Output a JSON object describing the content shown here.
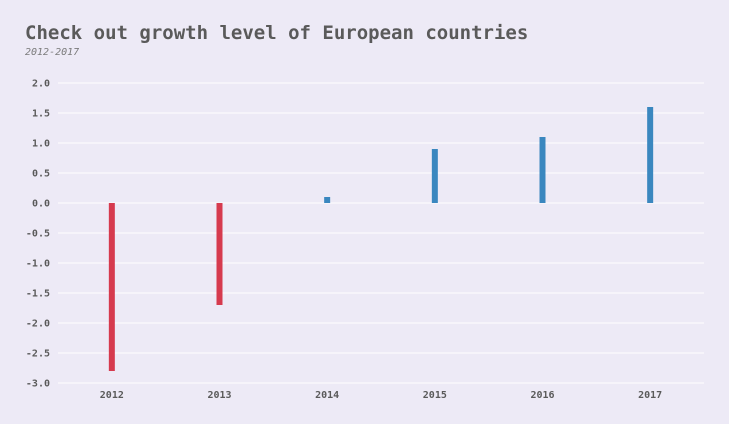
{
  "chart_data": {
    "type": "bar",
    "title": "Check out growth level of European countries",
    "subtitle": "2012-2017",
    "xlabel": "",
    "ylabel": "",
    "categories": [
      "2012",
      "2013",
      "2014",
      "2015",
      "2016",
      "2017"
    ],
    "values": [
      -2.8,
      -1.7,
      0.1,
      0.9,
      1.1,
      1.6
    ],
    "ylim": [
      -3.0,
      2.0
    ],
    "yticks": [
      2.0,
      1.5,
      1.0,
      0.5,
      0.0,
      -0.5,
      -1.0,
      -1.5,
      -2.0,
      -2.5,
      -3.0
    ],
    "ytick_labels": [
      "2.0",
      "1.5",
      "1.0",
      "0.5",
      "0.0",
      "-0.5",
      "-1.0",
      "-1.5",
      "-2.0",
      "-2.5",
      "-3.0"
    ],
    "grid": true,
    "colors": {
      "positive": "#3a87bf",
      "negative": "#d63a4e",
      "grid": "#ffffff"
    }
  }
}
